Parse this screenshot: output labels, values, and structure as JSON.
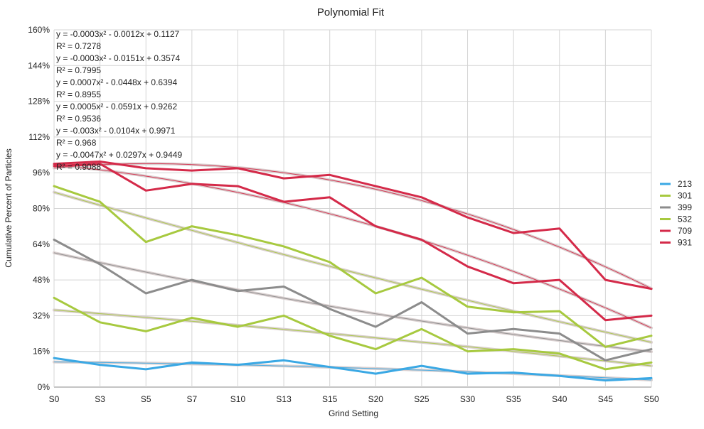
{
  "chart_data": {
    "type": "line",
    "title": "Polynomial Fit",
    "xlabel": "Grind Setting",
    "ylabel": "Cumulative Percent of Particles",
    "categories": [
      "S0",
      "S3",
      "S5",
      "S7",
      "S10",
      "S13",
      "S15",
      "S20",
      "S25",
      "S30",
      "S35",
      "S40",
      "S45",
      "S50"
    ],
    "ylim": [
      0,
      160
    ],
    "yticks": [
      "0%",
      "16%",
      "32%",
      "48%",
      "64%",
      "80%",
      "96%",
      "112%",
      "128%",
      "144%",
      "160%"
    ],
    "grid": true,
    "legend_position": "right",
    "series": [
      {
        "name": "213",
        "color": "#3aa8e4",
        "values": [
          13,
          10,
          8,
          11,
          10,
          12,
          9,
          6,
          9.5,
          6,
          6.5,
          5,
          3,
          4
        ]
      },
      {
        "name": "301",
        "color": "#a7c93f",
        "values": [
          40,
          29,
          25,
          31,
          27,
          32,
          23,
          17,
          26,
          16,
          17,
          15,
          8,
          11
        ]
      },
      {
        "name": "399",
        "color": "#8c8c8c",
        "values": [
          66,
          55,
          42,
          48,
          43,
          45,
          35,
          27,
          38,
          24,
          26,
          24,
          12,
          17
        ]
      },
      {
        "name": "532",
        "color": "#a7c93f",
        "values": [
          90,
          83,
          65,
          72,
          68,
          63,
          56,
          42,
          49,
          36,
          33.5,
          34,
          18,
          23
        ]
      },
      {
        "name": "709",
        "color": "#d42a49",
        "values": [
          99,
          100,
          88,
          91,
          90,
          83,
          85,
          72,
          66,
          54,
          46.5,
          48,
          30,
          32
        ]
      },
      {
        "name": "931",
        "color": "#d42a49",
        "values": [
          100,
          101,
          98,
          97,
          98,
          93.5,
          95,
          90,
          85,
          76,
          69,
          71,
          48,
          44
        ]
      }
    ],
    "trendlines": [
      {
        "series": "213",
        "equation": "y = -0.0003x² - 0.0012x + 0.1127",
        "r2": "R² = 0.7278"
      },
      {
        "series": "301",
        "equation": "y = -0.0003x² - 0.0151x + 0.3574",
        "r2": "R² = 0.7995"
      },
      {
        "series": "399",
        "equation": "y = 0.0007x² - 0.0448x + 0.6394",
        "r2": "R² = 0.8955"
      },
      {
        "series": "532",
        "equation": "y = 0.0005x² - 0.0591x + 0.9262",
        "r2": "R² = 0.9536"
      },
      {
        "series": "709",
        "equation": "y = -0.003x² - 0.0104x + 0.9971",
        "r2": "R² = 0.968"
      },
      {
        "series": "931",
        "equation": "y = -0.0047x² + 0.0297x + 0.9449",
        "r2": "R² = 0.9088"
      }
    ]
  }
}
